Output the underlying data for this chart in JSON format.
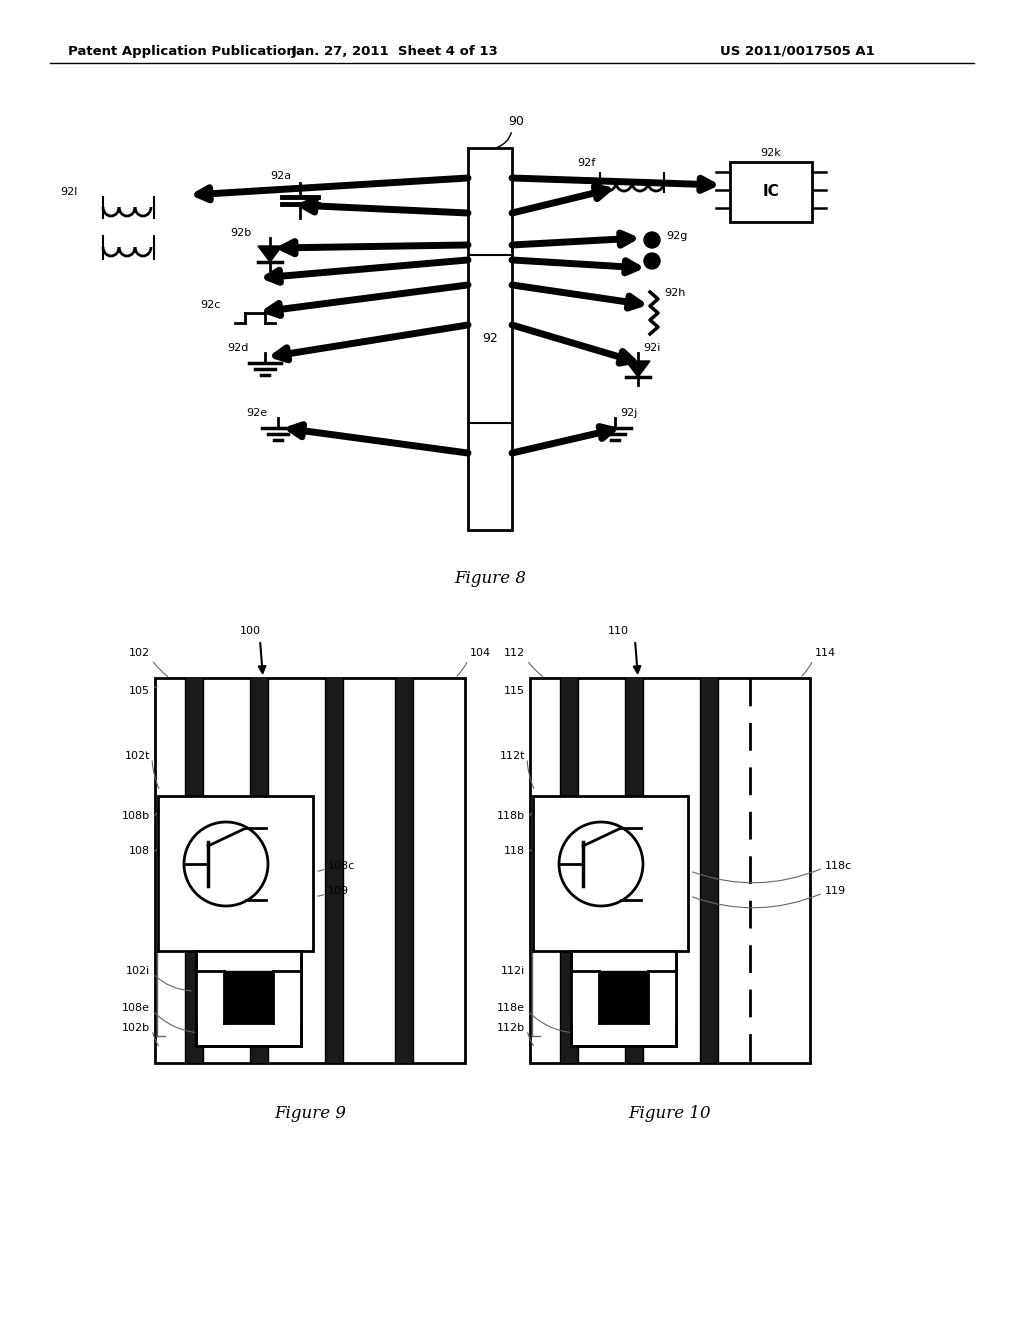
{
  "bg_color": "#ffffff",
  "header_left": "Patent Application Publication",
  "header_center": "Jan. 27, 2011  Sheet 4 of 13",
  "header_right": "US 2011/0017505 A1",
  "fig8_label": "Figure 8",
  "fig9_label": "Figure 9",
  "fig10_label": "Figure 10",
  "text_color": "#000000",
  "line_color": "#000000"
}
